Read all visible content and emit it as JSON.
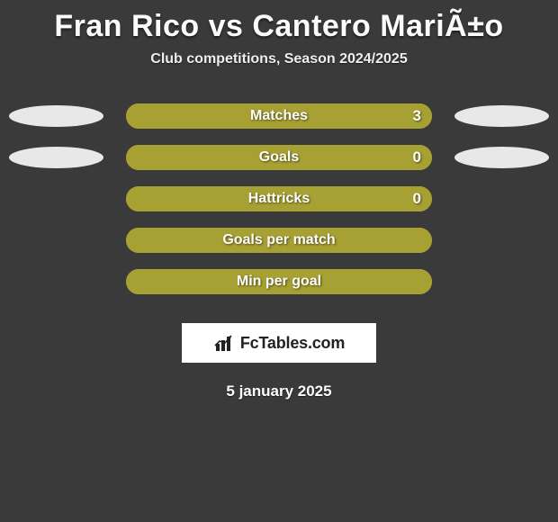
{
  "title": "Fran Rico vs Cantero MariÃ±o",
  "subtitle": "Club competitions, Season 2024/2025",
  "date": "5 january 2025",
  "logo_text_prefix": "Fc",
  "logo_text_suffix": "Tables.com",
  "colors": {
    "background": "#3a3a3a",
    "bar_fill": "#a7a033",
    "bar_border": "#a7a033",
    "ellipse": "#e8e8e8",
    "text": "#ffffff"
  },
  "stats": [
    {
      "label": "Matches",
      "value": "3",
      "show_value": true,
      "left_ellipse": true,
      "right_ellipse": true,
      "fill_pct": 100
    },
    {
      "label": "Goals",
      "value": "0",
      "show_value": true,
      "left_ellipse": true,
      "right_ellipse": true,
      "fill_pct": 100
    },
    {
      "label": "Hattricks",
      "value": "0",
      "show_value": true,
      "left_ellipse": false,
      "right_ellipse": false,
      "fill_pct": 100
    },
    {
      "label": "Goals per match",
      "value": "",
      "show_value": false,
      "left_ellipse": false,
      "right_ellipse": false,
      "fill_pct": 100
    },
    {
      "label": "Min per goal",
      "value": "",
      "show_value": false,
      "left_ellipse": false,
      "right_ellipse": false,
      "fill_pct": 100
    }
  ]
}
